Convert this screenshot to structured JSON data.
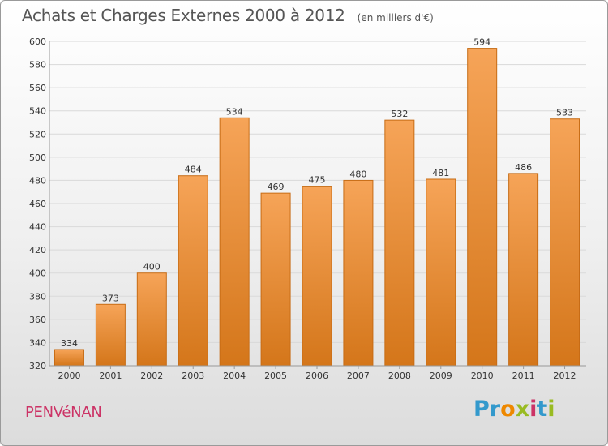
{
  "header": {
    "title": "Achats et Charges Externes 2000 à 2012",
    "subtitle": "(en milliers d'€)"
  },
  "commune": "PENVéNAN",
  "logo": {
    "text": "Proxiti",
    "letters": [
      {
        "char": "P",
        "color": "#3399cc"
      },
      {
        "char": "r",
        "color": "#3399cc"
      },
      {
        "char": "o",
        "color": "#ee8800"
      },
      {
        "char": "x",
        "color": "#99bb22"
      },
      {
        "char": "i",
        "color": "#cc3366"
      },
      {
        "char": "t",
        "color": "#3399cc"
      },
      {
        "char": "i",
        "color": "#99bb22"
      }
    ]
  },
  "colors": {
    "bar_top": "#f6a458",
    "bar_bottom": "#d4761a",
    "bar_edge": "#c76c15",
    "grid": "#d9d9d9",
    "axis": "#999999"
  },
  "chart_data": {
    "type": "bar",
    "categories": [
      "2000",
      "2001",
      "2002",
      "2003",
      "2004",
      "2005",
      "2006",
      "2007",
      "2008",
      "2009",
      "2010",
      "2011",
      "2012"
    ],
    "values": [
      334,
      373,
      400,
      484,
      534,
      469,
      475,
      480,
      532,
      481,
      594,
      486,
      533
    ],
    "ylim": [
      320,
      600
    ],
    "yticks": [
      320,
      340,
      360,
      380,
      400,
      420,
      440,
      460,
      480,
      500,
      520,
      540,
      560,
      580,
      600
    ],
    "grid": true,
    "title": "Achats et Charges Externes 2000 à 2012",
    "subtitle": "(en milliers d'€)",
    "xlabel": "",
    "ylabel": ""
  }
}
